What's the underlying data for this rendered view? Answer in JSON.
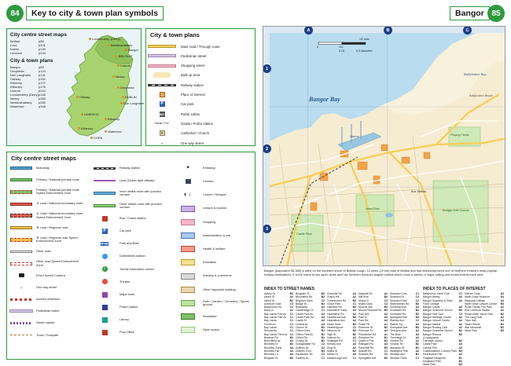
{
  "header": {
    "left_page": "84",
    "left_title": "Key to city & town plan symbols",
    "right_title": "Bangor",
    "right_page": "85"
  },
  "ireland_panel": {
    "city_centre_heading": "City centre street maps",
    "city_centre": [
      {
        "name": "Belfast",
        "page": "p88"
      },
      {
        "name": "Cork",
        "page": "p101"
      },
      {
        "name": "Dublin",
        "page": "p130"
      },
      {
        "name": "Limerick",
        "page": "p234"
      }
    ],
    "city_town_heading": "City & town plans",
    "city_town": [
      {
        "name": "Bangor",
        "page": "p85"
      },
      {
        "name": "Drogheda",
        "page": "p124"
      },
      {
        "name": "Dún Laoghaire",
        "page": "p131"
      },
      {
        "name": "Galway",
        "page": "p152"
      },
      {
        "name": "Kilkenny",
        "page": "p172"
      },
      {
        "name": "Killarney",
        "page": "p176"
      },
      {
        "name": "Lisburn",
        "page": "p244"
      },
      {
        "name": "Londonderry (Derry)",
        "page": "p145"
      },
      {
        "name": "Newry",
        "page": "p263"
      },
      {
        "name": "Newtownabbey",
        "page": "p265"
      },
      {
        "name": "Waterford",
        "page": "p348"
      }
    ],
    "map_places": [
      "Londonderry (Derry)",
      "Newtownabbey",
      "Bangor",
      "BELFAST",
      "Lisburn",
      "Newry",
      "Drogheda",
      "DUBLIN",
      "Dún Laoghaire",
      "Galway",
      "LIMERICK",
      "Kilkenny",
      "Waterford",
      "Killarney",
      "CORK"
    ]
  },
  "city_town_legend": {
    "heading": "City & town plans",
    "items": [
      {
        "label": "Main road / Through route",
        "sym": "mainroad"
      },
      {
        "label": "Pedestrian street",
        "sym": "pedestrian"
      },
      {
        "label": "Shopping street",
        "sym": "shopping"
      },
      {
        "label": "Built up area",
        "sym": "builtup"
      },
      {
        "label": "Railway station",
        "sym": "railway"
      },
      {
        "label": "Place of interest",
        "sym": "poi"
      },
      {
        "label": "Car park",
        "sym": "carpark"
      },
      {
        "label": "Public toilets",
        "sym": "toilets"
      },
      {
        "label": "Garda / Police station",
        "sym": "garda"
      },
      {
        "label": "Cathedral / Church",
        "sym": "church"
      },
      {
        "label": "One way street",
        "sym": "oneway"
      }
    ],
    "garda_symbol_text": "Garda / Pol."
  },
  "city_centre_legend": {
    "heading": "City centre street maps",
    "col1": [
      {
        "label": "Motorway",
        "sym": "motorway"
      },
      {
        "label": "Primary / National primary route",
        "sym": "primary"
      },
      {
        "label": "Primary / National primary route Speed Enforcement Zone",
        "sym": "primary_sez"
      },
      {
        "label": "'A' road / National secondary route",
        "sym": "aroad"
      },
      {
        "label": "'A' road / National secondary route Speed Enforcement Zone",
        "sym": "aroad_sez"
      },
      {
        "label": "'B' road / Regional road",
        "sym": "broad"
      },
      {
        "label": "'B' road / Regional road Speed Enforcement Zone",
        "sym": "broad_sez"
      },
      {
        "label": "Other road",
        "sym": "other"
      },
      {
        "label": "Other road Speed Enforcement Zone",
        "sym": "other_sez"
      },
      {
        "label": "Fixed Speed Camera",
        "sym": "camera"
      },
      {
        "label": "One way street",
        "sym": "oneway"
      },
      {
        "label": "Access restriction",
        "sym": "access"
      },
      {
        "label": "Pedestrian street",
        "sym": "pedestrian"
      },
      {
        "label": "Street market",
        "sym": "market"
      },
      {
        "label": "Track / Footpath",
        "sym": "track"
      }
    ],
    "col2": [
      {
        "label": "Railway station",
        "sym": "rail"
      },
      {
        "label": "Luas (Dublin light railway)",
        "sym": "luas"
      },
      {
        "label": "Inner orbital route with junction number",
        "sym": "inner"
      },
      {
        "label": "Outer orbital route with junction number",
        "sym": "outer"
      },
      {
        "label": "Bus / Coach station",
        "sym": "bus"
      },
      {
        "label": "Car park",
        "sym": "carpark"
      },
      {
        "label": "Park and Ride",
        "sym": "pandr"
      },
      {
        "label": "Dublinbikes station",
        "sym": "bikes"
      },
      {
        "label": "Tourist information centre",
        "sym": "tourist"
      },
      {
        "label": "Theatre",
        "sym": "theatre"
      },
      {
        "label": "Major hotel",
        "sym": "hotel"
      },
      {
        "label": "Police station",
        "sym": "police"
      },
      {
        "label": "Library",
        "sym": "library"
      },
      {
        "label": "Post Office",
        "sym": "post"
      }
    ],
    "col3": [
      {
        "label": "Embassy",
        "sym": "embassy"
      },
      {
        "label": "Cinema",
        "sym": "cinema"
      },
      {
        "label": "Church / Mosque",
        "sym": "churchmosque"
      },
      {
        "label": "Leisure & tourism",
        "sym": "leisure"
      },
      {
        "label": "Shopping",
        "sym": "shopbox"
      },
      {
        "label": "Administration & law",
        "sym": "admin"
      },
      {
        "label": "Health & welfare",
        "sym": "health"
      },
      {
        "label": "Education",
        "sym": "education"
      },
      {
        "label": "Industry & commerce",
        "sym": "industry"
      },
      {
        "label": "Other important building",
        "sym": "otherbld"
      },
      {
        "label": "Park / Garden / Cemetery / Sports ground",
        "sym": "park"
      },
      {
        "label": "Woodland",
        "sym": "woodland"
      },
      {
        "label": "Open space",
        "sym": "openspace"
      }
    ],
    "road_tags": [
      "N4",
      "R345"
    ],
    "parking_letter": "P",
    "pandr_text": "P+R"
  },
  "map": {
    "grid_cols": [
      "A",
      "B",
      "C"
    ],
    "grid_rows": [
      "1",
      "2",
      "3"
    ],
    "bay_label": "Bangor Bay",
    "labels": [
      "Ballyholme Bay",
      "Ballyholme Beach",
      "Ward Park",
      "Castle Park",
      "Playing Fields",
      "Bangor Golf Course",
      "Bus Station",
      "Marina"
    ],
    "scale_left": "0",
    "scale_mid": "1/4",
    "scale_right": "1/2 mile",
    "scale_km": "0.25",
    "scale_km2": "0.5 kilometre"
  },
  "description": "Bangor (population 58,388) is sited on the southern shore of Belfast Lough, 12 miles (19 km) east of Belfast and has historically been one of Northern Ireland's most popular holiday destinations. It is the home to two yacht clubs and has Northern Ireland's largest marina which hosts a variety of major sailing and tourist events each year.",
  "street_index": {
    "title": "INDEX TO STREET NAMES",
    "col1": [
      [
        "Abbey St",
        "B3"
      ],
      [
        "Albert St",
        "A2"
      ],
      [
        "Alfred St",
        "B2"
      ],
      [
        "Ashmore Dale",
        "C3"
      ],
      [
        "Ballyholme Rd",
        "C2"
      ],
      [
        "Bank Ln",
        "A2"
      ],
      [
        "Bay Lands First Av",
        "C1"
      ],
      [
        "Bay Lands Fifth Av",
        "C1"
      ],
      [
        "Bay Lands",
        "C1"
      ],
      [
        "Fourth Av",
        "C1"
      ],
      [
        "Bay Lands",
        "C1"
      ],
      [
        "Second Av",
        "C1"
      ],
      [
        "Bay Lands Third Av",
        "C1"
      ],
      [
        "Beatrice Rd",
        "B2"
      ],
      [
        "Beechfield Av",
        "A2"
      ],
      [
        "Beverley Dr",
        "B3"
      ],
      [
        "Beverley Gdns",
        "A3"
      ],
      [
        "Beverley Hill",
        "A3"
      ],
      [
        "Beverley Ln",
        "A3"
      ],
      [
        "Bingham St",
        "B2"
      ]
    ],
    "col2": [
      [
        "Bingham St",
        "B2"
      ],
      [
        "Bloomfield Rd",
        "B2"
      ],
      [
        "Brighton Gdns",
        "C2"
      ],
      [
        "Bridge St",
        "B2"
      ],
      [
        "Broadway",
        "A3"
      ],
      [
        "Castlereagh Dr",
        "C1"
      ],
      [
        "Castle Park Av",
        "A3"
      ],
      [
        "Castle Park Rd",
        "A3"
      ],
      [
        "Castle St",
        "A2"
      ],
      [
        "Central Av",
        "A3"
      ],
      [
        "Church St",
        "B2"
      ],
      [
        "Clifton Gdns",
        "B1"
      ],
      [
        "Clifton Park Av",
        "B1"
      ],
      [
        "Clifton Rd",
        "B1"
      ],
      [
        "Crosby St",
        "B2"
      ],
      [
        "Donaghadee Rd",
        "C2"
      ],
      [
        "Dufferin Av",
        "A2"
      ],
      [
        "Dufferin Cres",
        "B3"
      ],
      [
        "Eastmount Ter",
        "C2"
      ],
      [
        "Godfrey Av",
        "C1"
      ]
    ],
    "col3": [
      [
        "Granville Rd",
        "A3"
      ],
      [
        "Gray's Hill",
        "A2"
      ],
      [
        "Greenmount Rd",
        "B3"
      ],
      [
        "Grove Park",
        "C1"
      ],
      [
        "Hamilton Rd",
        "B2"
      ],
      [
        "Hazeldene Gdns",
        "A3"
      ],
      [
        "Hazeldene Rd",
        "A3"
      ],
      [
        "Hazelbrook Ave",
        "B3"
      ],
      [
        "Hazeldene Ave",
        "A3"
      ],
      [
        "Hazel Drive",
        "B3"
      ],
      [
        "Heathergrove",
        "C2"
      ],
      [
        "Hibernia St",
        "B2"
      ],
      [
        "High St",
        "B2"
      ],
      [
        "Holborn Av",
        "A2"
      ],
      [
        "Innisfayle Rd",
        "C1"
      ],
      [
        "Kilmory Ave",
        "A3"
      ],
      [
        "King St",
        "A2"
      ],
      [
        "Mains St",
        "B2"
      ],
      [
        "Manor Dr",
        "A3"
      ],
      [
        "Marlborough Ave",
        "C1"
      ]
    ],
    "col4": [
      [
        "Maxwell Rd",
        "A2"
      ],
      [
        "Mill Row",
        "B2"
      ],
      [
        "Moira Dr",
        "C3"
      ],
      [
        "Moira Gdns",
        "C3"
      ],
      [
        "Mourne Ave",
        "B3"
      ],
      [
        "Mount Pleasant Rd",
        "B3"
      ],
      [
        "Park Ave",
        "A2"
      ],
      [
        "Park Dr",
        "A3"
      ],
      [
        "Park Rd",
        "A3"
      ],
      [
        "Pickie Ter",
        "A1"
      ],
      [
        "Portmore St",
        "B2"
      ],
      [
        "Primrose St",
        "A2"
      ],
      [
        "Princetown Rd",
        "A1"
      ],
      [
        "Prospect Rd",
        "B1"
      ],
      [
        "Queen's Pde",
        "B2"
      ],
      [
        "Rathgael Rd",
        "A3"
      ],
      [
        "Ravenhill Rd",
        "B3"
      ],
      [
        "Seacliff Rd",
        "C1"
      ],
      [
        "Seaview Rd",
        "C2"
      ],
      [
        "Springfield Ave",
        "B3"
      ]
    ],
    "col5": [
      [
        "Shandon Cres",
        "C1"
      ],
      [
        "Shandon Dr",
        "C2"
      ],
      [
        "Shandon Park",
        "C2"
      ],
      [
        "Silverstream Rd",
        "B3"
      ],
      [
        "Somerset Ave",
        "A3"
      ],
      [
        "Southwell Rd",
        "B2"
      ],
      [
        "Southwell Rd",
        "B2"
      ],
      [
        "Springwell Ave",
        "B3"
      ],
      [
        "Stanley Ave",
        "C2"
      ],
      [
        "Station Sq",
        "A2"
      ],
      [
        "Sunnyside Ave",
        "B3"
      ],
      [
        "Tennyson Ave",
        "A2"
      ],
      [
        "The Brae",
        "A3"
      ],
      [
        "Thornleigh Dr",
        "A3"
      ],
      [
        "Victoria Rd",
        "A2"
      ],
      [
        "Victoria Ter",
        "B2"
      ],
      [
        "Waverley Dr",
        "B1"
      ],
      [
        "Wellington Pde",
        "A2"
      ],
      [
        "Windsor Ave",
        "B1"
      ],
      [
        "Windsor Gdns",
        "C1"
      ]
    ]
  },
  "poi_index": {
    "title": "INDEX TO PLACES OF INTEREST",
    "col1": [
      [
        "Ballyholme Yacht Club",
        "C1"
      ],
      [
        "Bangor Abbey",
        "A3"
      ],
      [
        "Bangor Academy & Sixth Form College",
        "A3"
      ],
      [
        "Bangor Castle",
        "A3"
      ],
      [
        "Bangor Grammar School",
        "B3"
      ],
      [
        "Bangor Golf Club",
        "C2"
      ],
      [
        "Bangor Heritage Centre",
        "A2"
      ],
      [
        "Bangor Leisure Centre",
        "A3"
      ],
      [
        "Bangor Marina",
        "A2"
      ],
      [
        "Bangor Rowing Club",
        "A2"
      ],
      [
        "Bangor Grammar School",
        "B2"
      ],
      [
        "Bangor Rescue (Coastguard)",
        "B2"
      ],
      [
        "Carnegie Library",
        "B2"
      ],
      [
        "Castle Park",
        "A3"
      ],
      [
        "Central Pier",
        "A2"
      ],
      [
        "Crawfordsburn Country Park",
        "B3"
      ],
      [
        "Eisenhower Pier",
        "A2"
      ],
      [
        "Flagstaff Viewpoint",
        "B1"
      ],
      [
        "Kingsland Park",
        "B2"
      ],
      [
        "Ward Park",
        "B2"
      ]
    ],
    "col2": [
      [
        "McKee Clock",
        "A2"
      ],
      [
        "North Down Museum",
        "A3"
      ],
      [
        "Regional College",
        "A3"
      ],
      [
        "North Down Leisure Centre",
        "B3"
      ],
      [
        "Pickie Family Fun Park",
        "A2"
      ],
      [
        "RNLI Lifeboat Station",
        "A2"
      ],
      [
        "Royal Ulster Yacht Club",
        "B2"
      ],
      [
        "The Long Hole",
        "A2"
      ],
      [
        "Town Hall",
        "A3"
      ],
      [
        "Tower House",
        "B2"
      ],
      [
        "War Memorial",
        "B2"
      ],
      [
        "Ward Park",
        "B3"
      ]
    ]
  }
}
